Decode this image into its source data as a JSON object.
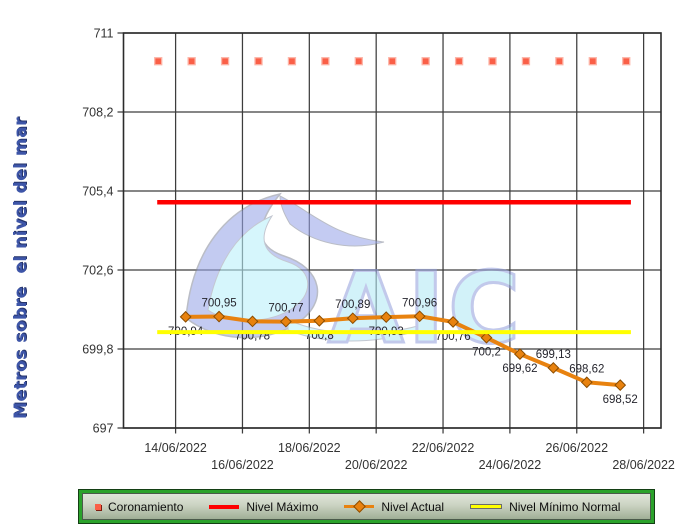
{
  "watermark": {
    "text": "AIC"
  },
  "chart_data": {
    "type": "line",
    "title": "",
    "xlabel": "",
    "ylabel": "Metros sobre  el nivel del mar",
    "ylim": [
      697,
      711
    ],
    "grid": "on",
    "legend_position": "bottom",
    "yticks": [
      {
        "value": 711,
        "label": "711"
      },
      {
        "value": 708.2,
        "label": "708,2"
      },
      {
        "value": 705.4,
        "label": "705,4"
      },
      {
        "value": 702.6,
        "label": "702,6"
      },
      {
        "value": 699.8,
        "label": "699,8"
      },
      {
        "value": 697,
        "label": "697"
      }
    ],
    "xticks": [
      {
        "day": 0,
        "label": "14/06/2022",
        "row": 1
      },
      {
        "day": 2,
        "label": "16/06/2022",
        "row": 2
      },
      {
        "day": 4,
        "label": "18/06/2022",
        "row": 1
      },
      {
        "day": 6,
        "label": "20/06/2022",
        "row": 2
      },
      {
        "day": 8,
        "label": "22/06/2022",
        "row": 1
      },
      {
        "day": 10,
        "label": "24/06/2022",
        "row": 2
      },
      {
        "day": 12,
        "label": "26/06/2022",
        "row": 1
      },
      {
        "day": 14,
        "label": "28/06/2022",
        "row": 2
      }
    ],
    "series": [
      {
        "name": "Coronamiento",
        "kind": "points",
        "value": 710,
        "day_start": -0.52,
        "count": 15,
        "color": "#fa5f47",
        "color_light": "#fcb4a7"
      },
      {
        "name": "Nivel Máximo",
        "kind": "hline",
        "value": 705,
        "day_start": -0.55,
        "day_end": 13.62,
        "color": "#fe0000",
        "width": 4.5
      },
      {
        "name": "Nivel Actual",
        "kind": "line",
        "color": "#e8820f",
        "marker_edge": "#8a4c00",
        "width": 4,
        "points": [
          {
            "day": 0.3,
            "value": 700.94,
            "label": "700,94",
            "label_pos": "below"
          },
          {
            "day": 1.3,
            "value": 700.95,
            "label": "700,95",
            "label_pos": "above"
          },
          {
            "day": 2.3,
            "value": 700.78,
            "label": "700,78",
            "label_pos": "below"
          },
          {
            "day": 3.3,
            "value": 700.77,
            "label": "700,77",
            "label_pos": "above"
          },
          {
            "day": 4.3,
            "value": 700.8,
            "label": "700,8",
            "label_pos": "below"
          },
          {
            "day": 5.3,
            "value": 700.89,
            "label": "700,89",
            "label_pos": "above"
          },
          {
            "day": 6.3,
            "value": 700.93,
            "label": "700,93",
            "label_pos": "below"
          },
          {
            "day": 7.3,
            "value": 700.96,
            "label": "700,96",
            "label_pos": "above"
          },
          {
            "day": 8.3,
            "value": 700.76,
            "label": "700,76",
            "label_pos": "below"
          },
          {
            "day": 9.3,
            "value": 700.2,
            "label": "700,2",
            "label_pos": "below"
          },
          {
            "day": 10.3,
            "value": 699.62,
            "label": "699,62",
            "label_pos": "below"
          },
          {
            "day": 11.3,
            "value": 699.13,
            "label": "699,13",
            "label_pos": "above"
          },
          {
            "day": 12.3,
            "value": 698.62,
            "label": "698,62",
            "label_pos": "above"
          },
          {
            "day": 13.3,
            "value": 698.52,
            "label": "698,52",
            "label_pos": "below"
          }
        ]
      },
      {
        "name": "Nivel Mínimo Normal",
        "kind": "hline",
        "value": 700.4,
        "day_start": -0.55,
        "day_end": 13.62,
        "color": "#ffff00",
        "width": 4
      }
    ]
  }
}
